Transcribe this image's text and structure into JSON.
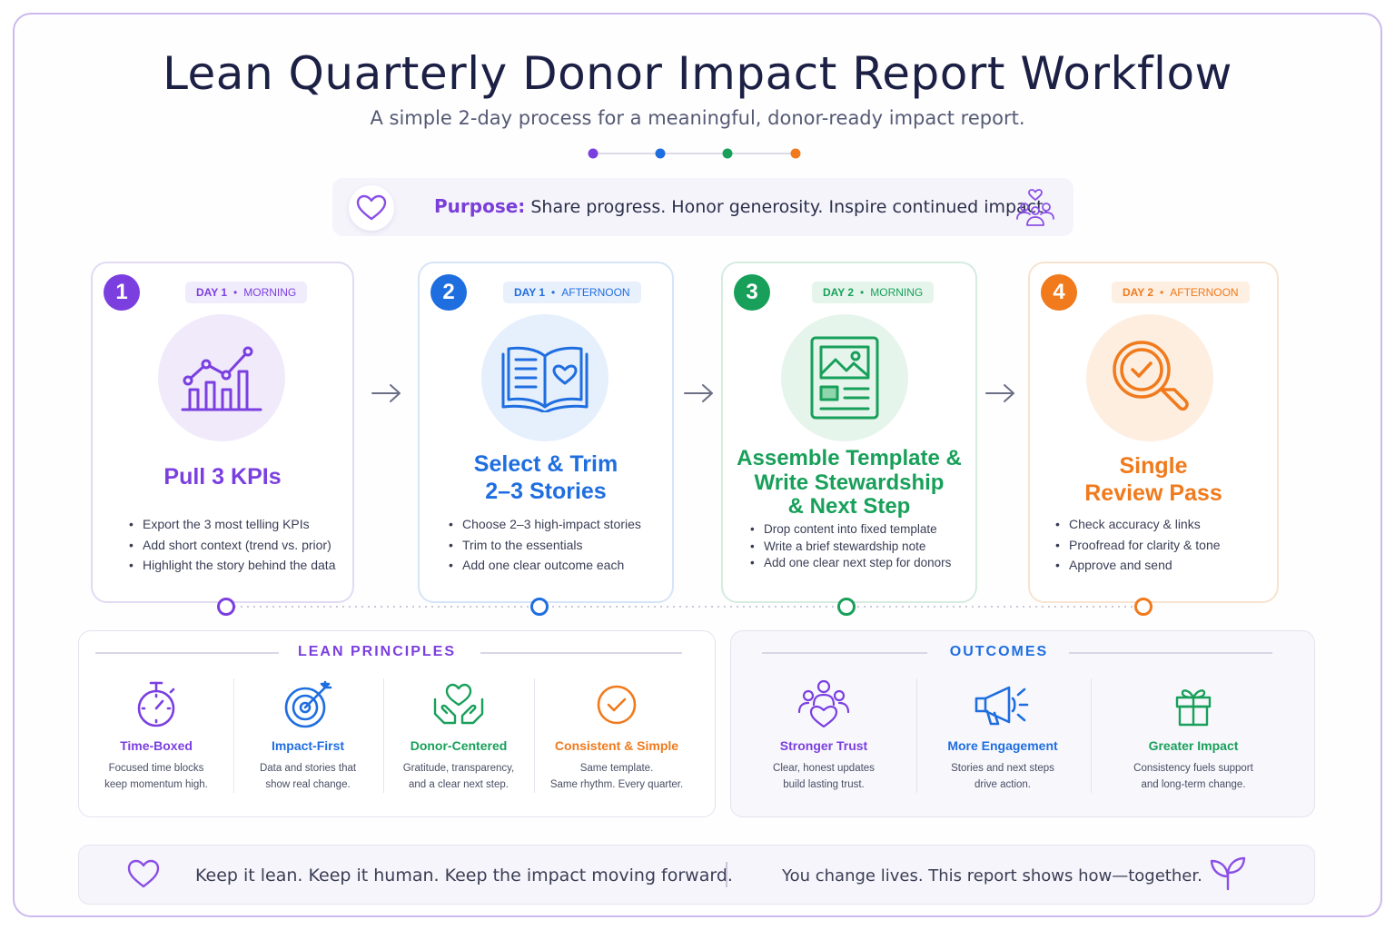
{
  "header": {
    "title": "Lean Quarterly Donor Impact Report Workflow",
    "subtitle": "A simple 2-day process for a meaningful, donor-ready impact report."
  },
  "purpose": {
    "label": "Purpose:",
    "text": " Share progress. Honor generosity. Inspire continued impact."
  },
  "steps": [
    {
      "number": "1",
      "day": "DAY 1",
      "time": "MORNING",
      "title": "Pull 3 KPIs",
      "color": "#7b3fe0",
      "icon": "chart-icon",
      "bullets": [
        "Export the 3 most telling KPIs",
        "Add short context (trend vs. prior)",
        "Highlight the story behind the data"
      ]
    },
    {
      "number": "2",
      "day": "DAY 1",
      "time": "AFTERNOON",
      "title_line1": "Select & Trim",
      "title_line2": "2–3 Stories",
      "color": "#1f6ee0",
      "icon": "book-heart-icon",
      "bullets": [
        "Choose 2–3 high-impact stories",
        "Trim to the essentials",
        "Add one clear outcome each"
      ]
    },
    {
      "number": "3",
      "day": "DAY 2",
      "time": "MORNING",
      "title_line1": "Assemble Template &",
      "title_line2": "Write Stewardship",
      "title_line3": "& Next Step",
      "color": "#18a05a",
      "icon": "template-icon",
      "bullets": [
        "Drop content into fixed template",
        "Write a brief stewardship note",
        "Add one clear next step for donors"
      ]
    },
    {
      "number": "4",
      "day": "DAY 2",
      "time": "AFTERNOON",
      "title_line1": "Single",
      "title_line2": "Review Pass",
      "color": "#f07a1c",
      "icon": "magnifier-check-icon",
      "bullets": [
        "Check accuracy & links",
        "Proofread for clarity & tone",
        "Approve and send"
      ]
    }
  ],
  "principles": {
    "heading": "LEAN PRINCIPLES",
    "items": [
      {
        "title": "Time-Boxed",
        "desc1": "Focused time blocks",
        "desc2": "keep momentum high.",
        "color": "#7b3fe0",
        "icon": "stopwatch-icon"
      },
      {
        "title": "Impact-First",
        "desc1": "Data and stories that",
        "desc2": "show real change.",
        "color": "#1f6ee0",
        "icon": "target-icon"
      },
      {
        "title": "Donor-Centered",
        "desc1": "Gratitude, transparency,",
        "desc2": "and a clear next step.",
        "color": "#18a05a",
        "icon": "hands-heart-icon"
      },
      {
        "title": "Consistent & Simple",
        "desc1": "Same template.",
        "desc2": "Same rhythm. Every quarter.",
        "color": "#f07a1c",
        "icon": "check-circle-icon"
      }
    ]
  },
  "outcomes": {
    "heading": "OUTCOMES",
    "items": [
      {
        "title": "Stronger Trust",
        "desc1": "Clear, honest updates",
        "desc2": "build lasting trust.",
        "color": "#7b3fe0",
        "icon": "people-heart-icon"
      },
      {
        "title": "More Engagement",
        "desc1": "Stories and next steps",
        "desc2": "drive action.",
        "color": "#1f6ee0",
        "icon": "megaphone-icon"
      },
      {
        "title": "Greater Impact",
        "desc1": "Consistency fuels support",
        "desc2": "and long-term change.",
        "color": "#18a05a",
        "icon": "gift-icon"
      }
    ]
  },
  "footer": {
    "left": "Keep it lean. Keep it human. Keep the impact moving forward.",
    "right": "You change lives. This report shows how—together."
  }
}
